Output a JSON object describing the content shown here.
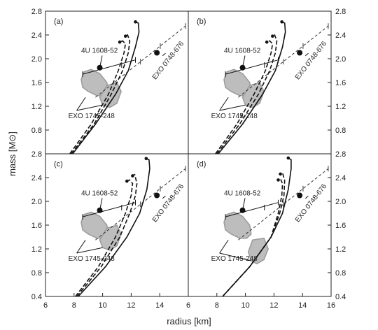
{
  "chart_data": {
    "type": "scatter",
    "xlabel": "radius [km]",
    "ylabel": "mass [M⊙]",
    "xlim": [
      6,
      16
    ],
    "ylim": [
      0.4,
      2.8
    ],
    "x_ticks_left": [
      "6",
      "8",
      "10",
      "12",
      "14",
      "6"
    ],
    "x_ticks_right": [
      "8",
      "10",
      "12",
      "14",
      "16"
    ],
    "y_ticks": [
      "0.4",
      "0.8",
      "1.2",
      "1.6",
      "2.0",
      "2.4",
      "2.8"
    ],
    "grid": false,
    "legend": "none",
    "panels": [
      {
        "label": "(a)",
        "column": 0,
        "row": 0,
        "source_labels": [
          {
            "text": "4U 1608-52",
            "x": 8.5,
            "y": 2.1,
            "arrow_to": [
              9.8,
              1.85
            ]
          },
          {
            "text": "EXO 0748-676",
            "x": 14.7,
            "y": 1.95,
            "arrow_to": [
              14.2,
              2.05
            ],
            "rotate": -52
          },
          {
            "text": "EXO 1745-248",
            "x": 7.6,
            "y": 1.0
          }
        ],
        "eos_curves": [
          {
            "style": "solid",
            "points": [
              [
                7.9,
                0.4
              ],
              [
                9.5,
                0.9
              ],
              [
                10.9,
                1.4
              ],
              [
                11.8,
                1.8
              ],
              [
                12.3,
                2.2
              ],
              [
                12.55,
                2.45
              ],
              [
                12.5,
                2.6
              ],
              [
                12.3,
                2.62
              ]
            ]
          },
          {
            "style": "dashed",
            "points": [
              [
                7.8,
                0.4
              ],
              [
                9.4,
                0.9
              ],
              [
                10.6,
                1.4
              ],
              [
                11.4,
                1.8
              ],
              [
                11.8,
                2.1
              ],
              [
                11.9,
                2.3
              ],
              [
                11.75,
                2.4
              ],
              [
                11.6,
                2.38
              ]
            ]
          },
          {
            "style": "dashed",
            "points": [
              [
                7.7,
                0.4
              ],
              [
                9.2,
                0.9
              ],
              [
                10.4,
                1.4
              ],
              [
                11.1,
                1.8
              ],
              [
                11.5,
                2.1
              ],
              [
                11.6,
                2.25
              ],
              [
                11.4,
                2.3
              ],
              [
                11.2,
                2.28
              ]
            ]
          }
        ],
        "data_points": [
          {
            "name": "4U 1608-52",
            "x": 9.8,
            "y": 1.85
          },
          {
            "name": "EXO 0748-676",
            "x": 13.8,
            "y": 2.1
          }
        ],
        "redshift_line": {
          "from": [
            9.5,
            1.35
          ],
          "to": [
            15.8,
            2.55
          ]
        },
        "error_bar": {
          "x1": 8.6,
          "x2": 12.3,
          "y1": 1.74,
          "y2": 1.98
        },
        "contours": [
          {
            "name": "EXO 1745-248 large",
            "points": [
              [
                8.5,
                1.65
              ],
              [
                8.7,
                1.78
              ],
              [
                9.2,
                1.82
              ],
              [
                9.8,
                1.75
              ],
              [
                10.3,
                1.6
              ],
              [
                10.4,
                1.45
              ],
              [
                10.1,
                1.38
              ],
              [
                9.6,
                1.38
              ],
              [
                9.0,
                1.45
              ],
              [
                8.6,
                1.52
              ]
            ]
          },
          {
            "name": "EXO 1745-248 small",
            "points": [
              [
                9.8,
                1.35
              ],
              [
                10.3,
                1.55
              ],
              [
                11.0,
                1.6
              ],
              [
                11.3,
                1.45
              ],
              [
                11.0,
                1.25
              ],
              [
                10.5,
                1.18
              ],
              [
                10.0,
                1.22
              ]
            ]
          }
        ]
      },
      {
        "label": "(b)",
        "column": 1,
        "row": 0,
        "source_labels": [
          {
            "text": "4U 1608-52",
            "x": 8.5,
            "y": 2.1,
            "arrow_to": [
              9.8,
              1.85
            ]
          },
          {
            "text": "EXO 0748-676",
            "x": 14.7,
            "y": 1.95,
            "arrow_to": [
              14.2,
              2.05
            ],
            "rotate": -52
          },
          {
            "text": "EXO 1745-248",
            "x": 7.6,
            "y": 1.0
          }
        ],
        "eos_curves": [
          {
            "style": "solid",
            "points": [
              [
                8.1,
                0.4
              ],
              [
                9.8,
                0.9
              ],
              [
                11.2,
                1.4
              ],
              [
                12.1,
                1.8
              ],
              [
                12.6,
                2.2
              ],
              [
                12.8,
                2.45
              ],
              [
                12.75,
                2.6
              ],
              [
                12.55,
                2.62
              ]
            ]
          },
          {
            "style": "dashed",
            "points": [
              [
                8.0,
                0.4
              ],
              [
                9.6,
                0.9
              ],
              [
                10.9,
                1.4
              ],
              [
                11.7,
                1.8
              ],
              [
                12.1,
                2.1
              ],
              [
                12.2,
                2.3
              ],
              [
                12.05,
                2.4
              ],
              [
                11.9,
                2.38
              ]
            ]
          },
          {
            "style": "dashed",
            "points": [
              [
                7.9,
                0.4
              ],
              [
                9.4,
                0.9
              ],
              [
                10.6,
                1.4
              ],
              [
                11.4,
                1.8
              ],
              [
                11.8,
                2.1
              ],
              [
                11.9,
                2.25
              ],
              [
                11.7,
                2.3
              ],
              [
                11.5,
                2.28
              ]
            ]
          }
        ],
        "data_points": [
          {
            "name": "4U 1608-52",
            "x": 9.8,
            "y": 1.85
          },
          {
            "name": "EXO 0748-676",
            "x": 13.8,
            "y": 2.1
          }
        ],
        "redshift_line": {
          "from": [
            9.5,
            1.35
          ],
          "to": [
            15.8,
            2.55
          ]
        },
        "error_bar": {
          "x1": 8.6,
          "x2": 12.3,
          "y1": 1.74,
          "y2": 1.98
        },
        "contours": [
          {
            "name": "EXO 1745-248 large",
            "points": [
              [
                8.5,
                1.65
              ],
              [
                8.7,
                1.78
              ],
              [
                9.2,
                1.82
              ],
              [
                9.8,
                1.75
              ],
              [
                10.3,
                1.6
              ],
              [
                10.4,
                1.45
              ],
              [
                10.1,
                1.38
              ],
              [
                9.6,
                1.38
              ],
              [
                9.0,
                1.45
              ],
              [
                8.6,
                1.52
              ]
            ]
          },
          {
            "name": "EXO 1745-248 small",
            "points": [
              [
                9.8,
                1.35
              ],
              [
                10.3,
                1.55
              ],
              [
                11.0,
                1.6
              ],
              [
                11.3,
                1.45
              ],
              [
                11.0,
                1.25
              ],
              [
                10.5,
                1.18
              ],
              [
                10.0,
                1.22
              ]
            ]
          }
        ]
      },
      {
        "label": "(c)",
        "column": 0,
        "row": 1,
        "source_labels": [
          {
            "text": "4U 1608-52",
            "x": 8.5,
            "y": 2.1,
            "arrow_to": [
              9.8,
              1.85
            ]
          },
          {
            "text": "EXO 0748-676",
            "x": 14.7,
            "y": 1.95,
            "arrow_to": [
              14.2,
              2.05
            ],
            "rotate": -52
          },
          {
            "text": "EXO 1745-248",
            "x": 7.6,
            "y": 1.0
          }
        ],
        "eos_curves": [
          {
            "style": "solid",
            "points": [
              [
                8.3,
                0.4
              ],
              [
                10.2,
                0.9
              ],
              [
                11.7,
                1.4
              ],
              [
                12.6,
                1.8
              ],
              [
                13.1,
                2.2
              ],
              [
                13.3,
                2.55
              ],
              [
                13.25,
                2.7
              ],
              [
                13.05,
                2.72
              ]
            ]
          },
          {
            "style": "dashed",
            "points": [
              [
                8.2,
                0.4
              ],
              [
                9.9,
                0.9
              ],
              [
                11.2,
                1.4
              ],
              [
                11.9,
                1.8
              ],
              [
                12.3,
                2.1
              ],
              [
                12.4,
                2.3
              ],
              [
                12.25,
                2.45
              ],
              [
                12.1,
                2.43
              ]
            ]
          },
          {
            "style": "dashed",
            "points": [
              [
                8.1,
                0.4
              ],
              [
                9.7,
                0.9
              ],
              [
                10.9,
                1.4
              ],
              [
                11.6,
                1.8
              ],
              [
                12.0,
                2.1
              ],
              [
                12.1,
                2.3
              ],
              [
                11.9,
                2.36
              ],
              [
                11.7,
                2.34
              ]
            ]
          }
        ],
        "data_points": [
          {
            "name": "4U 1608-52",
            "x": 9.8,
            "y": 1.85
          },
          {
            "name": "EXO 0748-676",
            "x": 13.8,
            "y": 2.1
          }
        ],
        "redshift_line": {
          "from": [
            9.5,
            1.35
          ],
          "to": [
            15.8,
            2.55
          ]
        },
        "error_bar": {
          "x1": 8.6,
          "x2": 12.3,
          "y1": 1.74,
          "y2": 1.98
        },
        "contours": [
          {
            "name": "EXO 1745-248 large",
            "points": [
              [
                8.5,
                1.65
              ],
              [
                8.7,
                1.78
              ],
              [
                9.2,
                1.82
              ],
              [
                9.8,
                1.75
              ],
              [
                10.3,
                1.6
              ],
              [
                10.4,
                1.45
              ],
              [
                10.1,
                1.38
              ],
              [
                9.6,
                1.38
              ],
              [
                9.0,
                1.45
              ],
              [
                8.6,
                1.52
              ]
            ]
          },
          {
            "name": "EXO 1745-248 small",
            "points": [
              [
                9.8,
                1.35
              ],
              [
                10.3,
                1.55
              ],
              [
                11.0,
                1.6
              ],
              [
                11.3,
                1.45
              ],
              [
                11.0,
                1.25
              ],
              [
                10.5,
                1.18
              ],
              [
                10.0,
                1.22
              ]
            ]
          }
        ]
      },
      {
        "label": "(d)",
        "column": 1,
        "row": 1,
        "source_labels": [
          {
            "text": "4U 1608-52",
            "x": 8.5,
            "y": 2.1,
            "arrow_to": [
              9.8,
              1.85
            ]
          },
          {
            "text": "EXO 0748-676",
            "x": 14.7,
            "y": 1.95,
            "arrow_to": [
              14.2,
              2.05
            ],
            "rotate": -52
          },
          {
            "text": "EXO 1745-248",
            "x": 7.6,
            "y": 1.0
          }
        ],
        "eos_curves": [
          {
            "style": "solid",
            "points": [
              [
                8.4,
                0.4
              ],
              [
                10.3,
                0.9
              ],
              [
                11.8,
                1.4
              ],
              [
                12.6,
                1.8
              ],
              [
                13.0,
                2.2
              ],
              [
                13.2,
                2.55
              ],
              [
                13.2,
                2.7
              ],
              [
                13.0,
                2.73
              ]
            ]
          },
          {
            "style": "dashed",
            "points": [
              [
                8.4,
                0.4
              ],
              [
                10.3,
                0.9
              ],
              [
                11.8,
                1.4
              ],
              [
                12.4,
                1.8
              ],
              [
                12.7,
                2.1
              ],
              [
                12.75,
                2.35
              ],
              [
                12.6,
                2.48
              ],
              [
                12.45,
                2.46
              ]
            ]
          },
          {
            "style": "dashed",
            "points": [
              [
                8.4,
                0.4
              ],
              [
                10.3,
                0.9
              ],
              [
                11.8,
                1.4
              ],
              [
                12.3,
                1.8
              ],
              [
                12.55,
                2.1
              ],
              [
                12.6,
                2.3
              ],
              [
                12.45,
                2.38
              ],
              [
                12.3,
                2.36
              ]
            ]
          }
        ],
        "data_points": [
          {
            "name": "4U 1608-52",
            "x": 9.8,
            "y": 1.85
          },
          {
            "name": "EXO 0748-676",
            "x": 13.8,
            "y": 2.1
          }
        ],
        "redshift_line": {
          "from": [
            9.5,
            1.35
          ],
          "to": [
            15.8,
            2.55
          ]
        },
        "error_bar": {
          "x1": 8.6,
          "x2": 12.3,
          "y1": 1.74,
          "y2": 1.98
        },
        "contours": [
          {
            "name": "EXO 1745-248 large",
            "points": [
              [
                8.5,
                1.65
              ],
              [
                8.7,
                1.78
              ],
              [
                9.2,
                1.82
              ],
              [
                9.8,
                1.75
              ],
              [
                10.3,
                1.6
              ],
              [
                10.4,
                1.45
              ],
              [
                10.1,
                1.38
              ],
              [
                9.6,
                1.38
              ],
              [
                9.0,
                1.45
              ],
              [
                8.6,
                1.52
              ]
            ]
          },
          {
            "name": "EXO 1745-248 small",
            "points": [
              [
                10.2,
                1.15
              ],
              [
                10.5,
                1.35
              ],
              [
                11.3,
                1.38
              ],
              [
                11.6,
                1.2
              ],
              [
                11.3,
                1.02
              ],
              [
                10.8,
                0.95
              ],
              [
                10.4,
                1.0
              ]
            ]
          }
        ]
      }
    ],
    "colors": {
      "axis": "#222222",
      "curve": "#111111",
      "contour_fill": "#bdbdbd",
      "contour_outline": "#9a9a9a",
      "redshift_line": "#333333"
    }
  }
}
